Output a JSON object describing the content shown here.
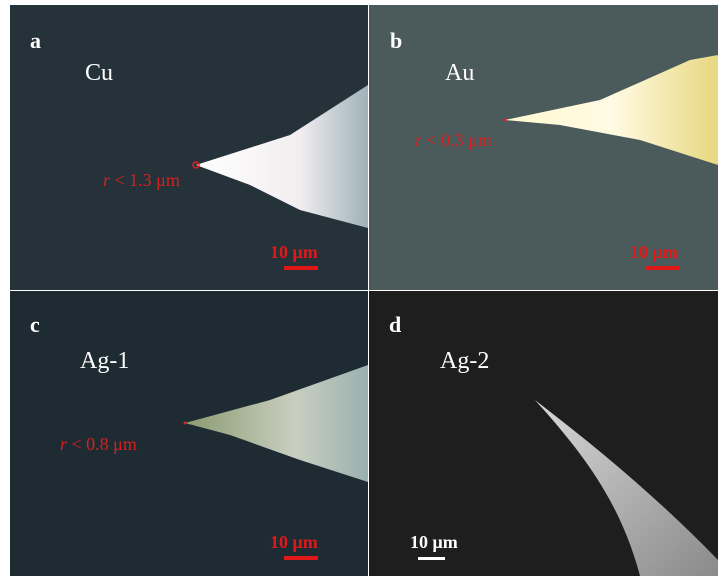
{
  "panels": [
    {
      "letter": "a",
      "material": "Cu",
      "radius_symbol": "r",
      "radius_text": "< 1.3 μm",
      "scale": "10 μm"
    },
    {
      "letter": "b",
      "material": "Au",
      "radius_symbol": "r",
      "radius_text": "< 0.3 μm",
      "scale": "10 μm"
    },
    {
      "letter": "c",
      "material": "Ag-1",
      "radius_symbol": "r",
      "radius_text": "< 0.8 μm",
      "scale": "10 μm"
    },
    {
      "letter": "d",
      "material": "Ag-2",
      "scale": "10 μm"
    }
  ]
}
